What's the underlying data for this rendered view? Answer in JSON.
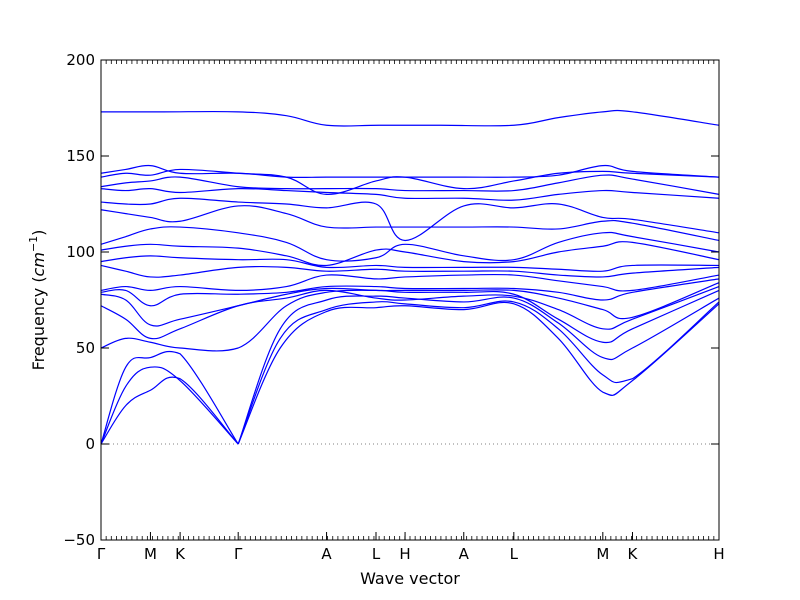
{
  "chart_data": {
    "type": "line",
    "title": "",
    "xlabel": "Wave vector",
    "ylabel_text": "Frequency (",
    "ylabel_unit": "cm",
    "ylabel_exp": "−1",
    "ylabel_close": ")",
    "ylim": [
      -50,
      200
    ],
    "yticks": [
      -50,
      0,
      50,
      100,
      150,
      200
    ],
    "xlim": [
      0,
      1
    ],
    "grid": false,
    "legend": "none",
    "line_color": "#0000ff",
    "zero_line": {
      "y": 0,
      "style": "dotted",
      "color": "#808080"
    },
    "high_symmetry_points": [
      {
        "label": "Γ",
        "x": 0.0
      },
      {
        "label": "M",
        "x": 0.08
      },
      {
        "label": "K",
        "x": 0.128
      },
      {
        "label": "Γ",
        "x": 0.222
      },
      {
        "label": "A",
        "x": 0.365
      },
      {
        "label": "L",
        "x": 0.445
      },
      {
        "label": "H",
        "x": 0.492
      },
      {
        "label": "A",
        "x": 0.587
      },
      {
        "label": "L",
        "x": 0.668
      },
      {
        "label": "M",
        "x": 0.812
      },
      {
        "label": "K",
        "x": 0.86
      },
      {
        "label": "H",
        "x": 1.0
      }
    ],
    "branches": [
      {
        "x": [
          0,
          0.04,
          0.08,
          0.128,
          0.222
        ],
        "y": [
          0,
          20,
          28,
          34,
          0
        ]
      },
      {
        "x": [
          0,
          0.04,
          0.08,
          0.128,
          0.222
        ],
        "y": [
          0,
          30,
          40,
          33,
          0
        ]
      },
      {
        "x": [
          0,
          0.04,
          0.08,
          0.128,
          0.222
        ],
        "y": [
          0,
          40,
          45,
          47,
          0
        ]
      },
      {
        "x": [
          0.222,
          0.29,
          0.365,
          0.445,
          0.492,
          0.587,
          0.668,
          0.74,
          0.812,
          0.86,
          1.0
        ],
        "y": [
          0,
          50,
          69,
          71,
          72,
          70,
          73,
          55,
          27,
          33,
          73
        ]
      },
      {
        "x": [
          0.222,
          0.29,
          0.365,
          0.445,
          0.492,
          0.587,
          0.668,
          0.74,
          0.812,
          0.86,
          1.0
        ],
        "y": [
          0,
          55,
          70,
          74,
          73,
          71,
          74,
          60,
          36,
          34,
          74
        ]
      },
      {
        "x": [
          0.222,
          0.29,
          0.365,
          0.445,
          0.492,
          0.587,
          0.668,
          0.74,
          0.812,
          0.86,
          1.0
        ],
        "y": [
          0,
          60,
          75,
          77,
          76,
          74,
          76,
          63,
          45,
          50,
          76
        ]
      },
      {
        "x": [
          0,
          0.04,
          0.08,
          0.128,
          0.222,
          0.3,
          0.365,
          0.445,
          0.492,
          0.587,
          0.668,
          0.74,
          0.812,
          0.86,
          1.0
        ],
        "y": [
          50,
          55,
          53,
          50,
          50,
          72,
          79,
          80,
          79,
          79,
          78,
          65,
          53,
          60,
          80
        ]
      },
      {
        "x": [
          0,
          0.04,
          0.08,
          0.128,
          0.222,
          0.3,
          0.365,
          0.445,
          0.492,
          0.587,
          0.668,
          0.74,
          0.812,
          0.86,
          1.0
        ],
        "y": [
          72,
          65,
          55,
          60,
          72,
          76,
          80,
          76,
          75,
          77,
          77,
          70,
          60,
          65,
          82
        ]
      },
      {
        "x": [
          0,
          0.04,
          0.08,
          0.128,
          0.222,
          0.3,
          0.365,
          0.445,
          0.492,
          0.587,
          0.668,
          0.74,
          0.812,
          0.86,
          1.0
        ],
        "y": [
          78,
          75,
          62,
          65,
          72,
          78,
          81,
          80,
          80,
          80,
          80,
          76,
          70,
          66,
          84
        ]
      },
      {
        "x": [
          0,
          0.04,
          0.08,
          0.128,
          0.222,
          0.3,
          0.365,
          0.445,
          0.492,
          0.587,
          0.668,
          0.74,
          0.812,
          0.86,
          1.0
        ],
        "y": [
          79,
          80,
          72,
          78,
          78,
          79,
          82,
          82,
          81,
          81,
          81,
          79,
          75,
          79,
          86
        ]
      },
      {
        "x": [
          0,
          0.04,
          0.08,
          0.128,
          0.222,
          0.3,
          0.365,
          0.445,
          0.492,
          0.587,
          0.668,
          0.74,
          0.812,
          0.86,
          1.0
        ],
        "y": [
          80,
          82,
          80,
          82,
          80,
          82,
          88,
          86,
          87,
          88,
          88,
          85,
          82,
          80,
          88
        ]
      },
      {
        "x": [
          0,
          0.04,
          0.08,
          0.128,
          0.222,
          0.3,
          0.365,
          0.445,
          0.492,
          0.587,
          0.668,
          0.74,
          0.812,
          0.86,
          1.0
        ],
        "y": [
          93,
          90,
          87,
          88,
          92,
          92,
          90,
          91,
          90,
          90,
          90,
          88,
          87,
          89,
          92
        ]
      },
      {
        "x": [
          0,
          0.04,
          0.08,
          0.128,
          0.222,
          0.3,
          0.365,
          0.445,
          0.492,
          0.587,
          0.668,
          0.74,
          0.812,
          0.86,
          1.0
        ],
        "y": [
          95,
          97,
          98,
          97,
          96,
          96,
          92,
          93,
          92,
          92,
          92,
          91,
          90,
          93,
          93
        ]
      },
      {
        "x": [
          0,
          0.04,
          0.08,
          0.128,
          0.222,
          0.3,
          0.365,
          0.445,
          0.492,
          0.587,
          0.668,
          0.74,
          0.812,
          0.86,
          1.0
        ],
        "y": [
          101,
          103,
          104,
          103,
          102,
          98,
          93,
          101,
          100,
          95,
          95,
          100,
          103,
          105,
          96
        ]
      },
      {
        "x": [
          0,
          0.04,
          0.08,
          0.128,
          0.222,
          0.3,
          0.365,
          0.445,
          0.492,
          0.587,
          0.668,
          0.74,
          0.812,
          0.86,
          1.0
        ],
        "y": [
          104,
          108,
          112,
          113,
          110,
          105,
          96,
          97,
          104,
          98,
          96,
          105,
          110,
          108,
          100
        ]
      },
      {
        "x": [
          0,
          0.04,
          0.08,
          0.128,
          0.222,
          0.3,
          0.365,
          0.445,
          0.492,
          0.587,
          0.668,
          0.74,
          0.812,
          0.86,
          1.0
        ],
        "y": [
          122,
          120,
          118,
          116,
          124,
          120,
          113,
          113,
          113,
          113,
          113,
          112,
          116,
          115,
          106
        ]
      },
      {
        "x": [
          0,
          0.04,
          0.08,
          0.128,
          0.222,
          0.3,
          0.365,
          0.445,
          0.492,
          0.587,
          0.668,
          0.74,
          0.812,
          0.86,
          1.0
        ],
        "y": [
          126,
          125,
          125,
          128,
          126,
          125,
          123,
          125,
          106,
          124,
          123,
          125,
          118,
          117,
          110
        ]
      },
      {
        "x": [
          0,
          0.04,
          0.08,
          0.128,
          0.222,
          0.3,
          0.365,
          0.445,
          0.492,
          0.587,
          0.668,
          0.74,
          0.812,
          0.86,
          1.0
        ],
        "y": [
          133,
          132,
          133,
          131,
          133,
          132,
          131,
          130,
          128,
          128,
          127,
          130,
          132,
          131,
          128
        ]
      },
      {
        "x": [
          0,
          0.04,
          0.08,
          0.128,
          0.222,
          0.3,
          0.365,
          0.445,
          0.492,
          0.587,
          0.668,
          0.74,
          0.812,
          0.86,
          1.0
        ],
        "y": [
          134,
          136,
          137,
          139,
          134,
          133,
          133,
          133,
          132,
          132,
          132,
          136,
          140,
          138,
          130
        ]
      },
      {
        "x": [
          0,
          0.04,
          0.08,
          0.128,
          0.222,
          0.3,
          0.365,
          0.445,
          0.492,
          0.587,
          0.668,
          0.74,
          0.812,
          0.86,
          1.0
        ],
        "y": [
          139,
          141,
          140,
          143,
          141,
          139,
          130,
          137,
          139,
          133,
          137,
          141,
          142,
          141,
          139
        ]
      },
      {
        "x": [
          0,
          0.04,
          0.08,
          0.128,
          0.222,
          0.3,
          0.365,
          0.445,
          0.492,
          0.587,
          0.668,
          0.74,
          0.812,
          0.86,
          1.0
        ],
        "y": [
          141,
          143,
          145,
          141,
          141,
          139,
          139,
          139,
          139,
          139,
          139,
          140,
          145,
          142,
          139
        ]
      },
      {
        "x": [
          0,
          0.1,
          0.222,
          0.3,
          0.365,
          0.45,
          0.55,
          0.668,
          0.74,
          0.812,
          0.86,
          1.0
        ],
        "y": [
          173,
          173,
          173,
          171,
          166,
          166,
          166,
          166,
          170,
          173,
          173,
          166
        ]
      }
    ]
  }
}
